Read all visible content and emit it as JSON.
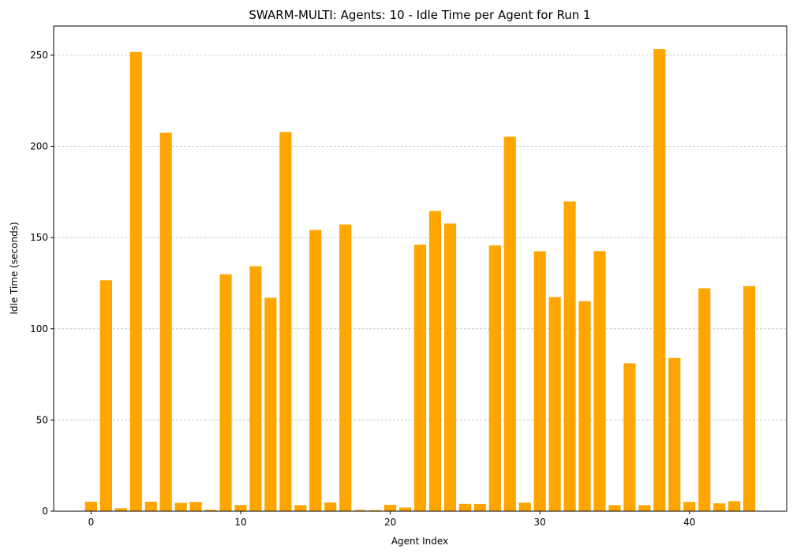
{
  "chart_data": {
    "type": "bar",
    "title": "SWARM-MULTI: Agents: 10 - Idle Time per Agent for Run 1",
    "xlabel": "Agent Index",
    "ylabel": "Idle Time (seconds)",
    "xlim": [
      -2.5,
      46.5
    ],
    "ylim": [
      0,
      266
    ],
    "xticks": [
      0,
      10,
      20,
      30,
      40
    ],
    "yticks": [
      0,
      50,
      100,
      150,
      200,
      250
    ],
    "grid": "y-dashed",
    "bar_color": "#ffa500",
    "x": [
      0,
      1,
      2,
      3,
      4,
      5,
      6,
      7,
      8,
      9,
      10,
      11,
      12,
      13,
      14,
      15,
      16,
      17,
      18,
      19,
      20,
      21,
      22,
      23,
      24,
      25,
      26,
      27,
      28,
      29,
      30,
      31,
      32,
      33,
      34,
      35,
      36,
      37,
      38,
      39,
      40,
      41,
      42,
      43,
      44
    ],
    "values": [
      5.2,
      126.6,
      1.6,
      251.8,
      5.2,
      207.5,
      4.6,
      5.1,
      0.8,
      129.9,
      3.4,
      134.3,
      117.0,
      207.9,
      3.3,
      154.2,
      4.8,
      157.2,
      0.7,
      0.6,
      3.5,
      2.0,
      146.1,
      164.6,
      157.7,
      4.0,
      3.9,
      145.7,
      205.3,
      4.7,
      142.5,
      117.4,
      169.8,
      115.1,
      142.6,
      3.3,
      81.1,
      3.3,
      253.4,
      84.0,
      5.1,
      122.2,
      4.3,
      5.5,
      123.4
    ]
  }
}
